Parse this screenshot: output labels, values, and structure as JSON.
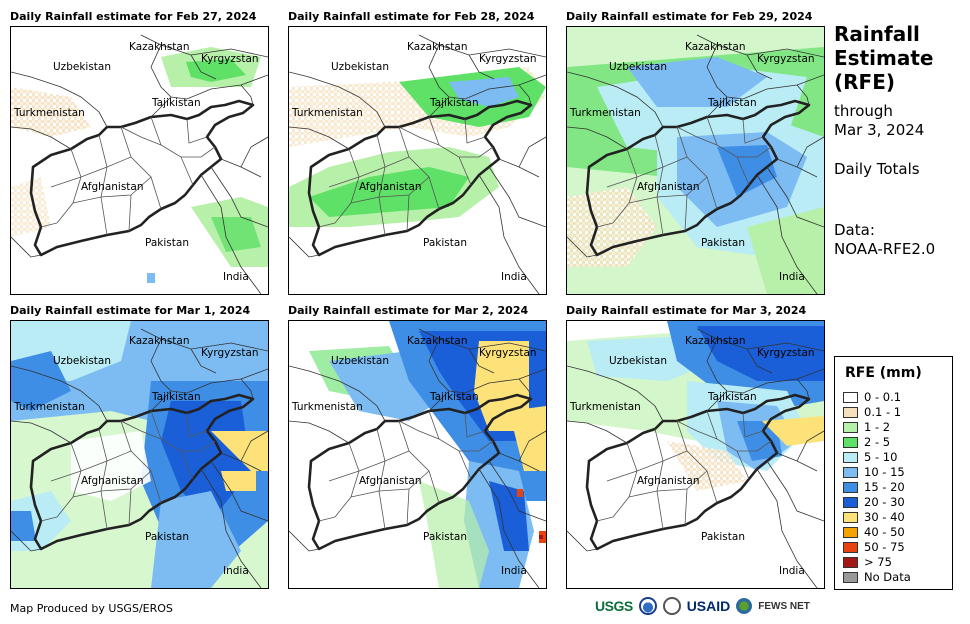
{
  "panels": [
    {
      "title": "Daily Rainfall estimate for Feb 27, 2024"
    },
    {
      "title": "Daily Rainfall estimate for Feb 28, 2024"
    },
    {
      "title": "Daily Rainfall estimate for Feb 29, 2024"
    },
    {
      "title": "Daily Rainfall estimate for Mar 1, 2024"
    },
    {
      "title": "Daily Rainfall estimate for Mar 2, 2024"
    },
    {
      "title": "Daily Rainfall estimate for Mar 3, 2024"
    }
  ],
  "map_labels": {
    "kazakhstan": "Kazakhstan",
    "kyrgyzstan": "Kyrgyzstan",
    "uzbekistan": "Uzbekistan",
    "tajikistan": "Tajikistan",
    "turkmenistan": "Turkmenistan",
    "afghanistan": "Afghanistan",
    "pakistan": "Pakistan",
    "india": "India"
  },
  "sidebar": {
    "title_line1": "Rainfall",
    "title_line2": "Estimate",
    "title_line3": "(RFE)",
    "through": "through",
    "date": "Mar 3, 2024",
    "daily_totals": "Daily Totals",
    "data_label": "Data:",
    "data_source": "NOAA-RFE2.0"
  },
  "legend": {
    "title": "RFE (mm)",
    "items": [
      {
        "label": "0 - 0.1",
        "color": "#ffffff"
      },
      {
        "label": "0.1 - 1",
        "color": "#f5dfbd"
      },
      {
        "label": "1 - 2",
        "color": "#b7f0a8"
      },
      {
        "label": "2 - 5",
        "color": "#5fe066"
      },
      {
        "label": "5 - 10",
        "color": "#b9ecf5"
      },
      {
        "label": "10 - 15",
        "color": "#7cbcf3"
      },
      {
        "label": "15 - 20",
        "color": "#3f8ee6"
      },
      {
        "label": "20 - 30",
        "color": "#1a5fd8"
      },
      {
        "label": "30 - 40",
        "color": "#fde27a"
      },
      {
        "label": "40 - 50",
        "color": "#f5a300"
      },
      {
        "label": "50 - 75",
        "color": "#e8430f"
      },
      {
        "label": "> 75",
        "color": "#a51616"
      },
      {
        "label": "No Data",
        "color": "#999999"
      }
    ]
  },
  "footer": {
    "credit": "Map Produced by USGS/EROS"
  },
  "logos": {
    "usgs": "USGS",
    "usaid": "USAID",
    "fews": "FEWS NET"
  }
}
